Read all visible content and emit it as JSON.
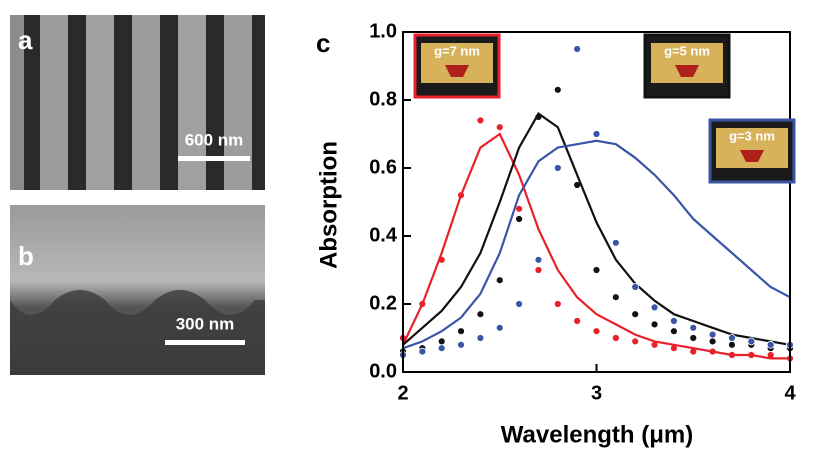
{
  "images": [
    {
      "label": "a",
      "scale_bar": "600 nm"
    },
    {
      "label": "b",
      "scale_bar": "300 nm"
    }
  ],
  "chart_data": {
    "type": "line",
    "panel_label": "c",
    "x_label": "Wavelength (μm)",
    "y_label": "Absorption",
    "xlim": [
      2,
      4
    ],
    "xticks": [
      2,
      3,
      4
    ],
    "ylim": [
      0,
      1
    ],
    "yticks": [
      {
        "value": 0,
        "label": "0.0"
      },
      0.2,
      0.4,
      0.6,
      0.8,
      {
        "value": 1,
        "label": "1.0"
      }
    ],
    "x": [
      2.0,
      2.1,
      2.2,
      2.3,
      2.4,
      2.5,
      2.6,
      2.7,
      2.8,
      2.9,
      3.0,
      3.1,
      3.2,
      3.3,
      3.4,
      3.5,
      3.6,
      3.7,
      3.8,
      3.9,
      4.0
    ],
    "series": [
      {
        "name": "g=7 nm",
        "color": "#e8202a",
        "values": [
          0.08,
          0.2,
          0.35,
          0.52,
          0.66,
          0.7,
          0.58,
          0.42,
          0.3,
          0.22,
          0.17,
          0.14,
          0.11,
          0.09,
          0.08,
          0.07,
          0.06,
          0.05,
          0.05,
          0.04,
          0.04
        ],
        "simulated": [
          0.1,
          0.2,
          0.33,
          0.52,
          0.74,
          0.72,
          0.48,
          0.3,
          0.2,
          0.15,
          0.12,
          0.1,
          0.09,
          0.08,
          0.07,
          0.06,
          0.06,
          0.05,
          0.05,
          0.05,
          0.04
        ]
      },
      {
        "name": "g=5 nm",
        "color": "#111111",
        "values": [
          0.08,
          0.13,
          0.18,
          0.25,
          0.35,
          0.5,
          0.66,
          0.76,
          0.72,
          0.58,
          0.44,
          0.33,
          0.26,
          0.21,
          0.17,
          0.15,
          0.13,
          0.11,
          0.1,
          0.09,
          0.08
        ],
        "simulated": [
          0.06,
          0.07,
          0.09,
          0.12,
          0.17,
          0.27,
          0.45,
          0.75,
          0.83,
          0.55,
          0.3,
          0.22,
          0.17,
          0.14,
          0.12,
          0.1,
          0.09,
          0.08,
          0.08,
          0.07,
          0.07
        ]
      },
      {
        "name": "g=3 nm",
        "color": "#3a55a6",
        "values": [
          0.07,
          0.09,
          0.12,
          0.16,
          0.23,
          0.35,
          0.52,
          0.62,
          0.66,
          0.67,
          0.68,
          0.67,
          0.63,
          0.58,
          0.52,
          0.45,
          0.4,
          0.35,
          0.3,
          0.25,
          0.22
        ],
        "simulated": [
          0.05,
          0.06,
          0.07,
          0.08,
          0.1,
          0.13,
          0.2,
          0.33,
          0.6,
          0.95,
          0.7,
          0.38,
          0.25,
          0.19,
          0.15,
          0.13,
          0.11,
          0.1,
          0.09,
          0.08,
          0.08
        ]
      }
    ]
  }
}
